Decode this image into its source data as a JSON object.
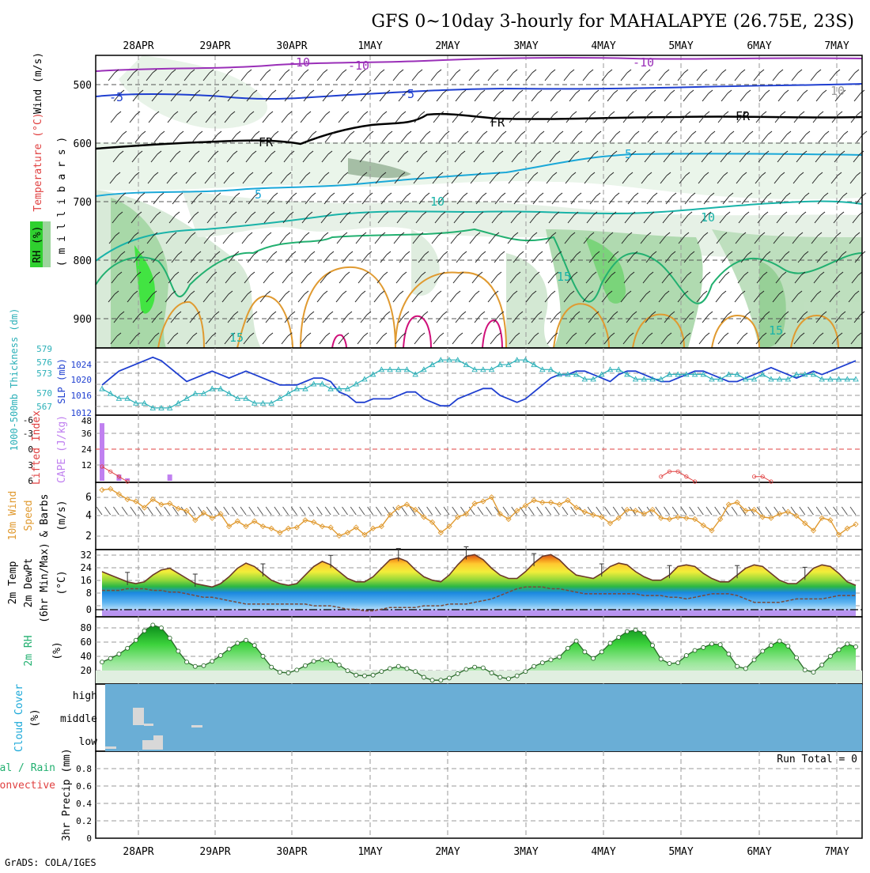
{
  "title": "GFS 0~10day 3-hourly for MAHALAPYE (26.75E, 23S)",
  "footer": "GrADS: COLA/IGES",
  "dates": [
    "28APR",
    "29APR",
    "30APR",
    "1MAY",
    "2MAY",
    "3MAY",
    "4MAY",
    "5MAY",
    "6MAY",
    "7MAY"
  ],
  "colors": {
    "grid": "#bbbbbb",
    "purple": "#9a2fb8",
    "blue": "#1f3fd0",
    "cyan": "#1aa8d8",
    "teal": "#19b3a8",
    "green": "#22b070",
    "orange": "#e09a30",
    "magenta": "#d0107a",
    "cloud": "#6aaed6"
  },
  "upper": {
    "ylabel_rh": "RH (%)",
    "ylabel_temp": "Temperature (°C)",
    "ylabel_wind": "Wind (m/s)",
    "ylabel_mb": "( m i l l i b a r s )",
    "pressure_ticks": [
      "500",
      "600",
      "700",
      "800",
      "900"
    ],
    "contour_labels": [
      "-10",
      "-10",
      "-10",
      "-5",
      "-5",
      "FR",
      "FR",
      "FR",
      "5",
      "5",
      "10",
      "10",
      "15",
      "15",
      "15",
      "10"
    ]
  },
  "thick_panel": {
    "left_label": "1000-500mb Thickness (dm)",
    "right_label": "SLP (mb)",
    "left_ticks": [
      "579",
      "576",
      "573",
      "570",
      "567"
    ],
    "right_ticks": [
      "1024",
      "1020",
      "1016",
      "1012"
    ]
  },
  "cape_panel": {
    "left_label": "Lifted Index",
    "right_label": "CAPE (J/kg)",
    "left_ticks": [
      "-6",
      "-3",
      "0",
      "3",
      "6"
    ],
    "right_ticks": [
      "48",
      "36",
      "24",
      "12"
    ]
  },
  "wind_panel": {
    "label1": "10m Wind",
    "label2": "Speed",
    "label3": "& Barbs",
    "unit": "(m/s)",
    "ticks": [
      "6",
      "4",
      "2"
    ]
  },
  "temp_panel": {
    "label1": "2m Temp",
    "label2": "2m DewPt",
    "label3": "(6hr Min/Max)",
    "unit": "(°C)",
    "ticks": [
      "32",
      "24",
      "16",
      "8",
      "0"
    ]
  },
  "rh_panel": {
    "label": "2m RH",
    "unit": "(%)",
    "ticks": [
      "80",
      "60",
      "40",
      "20"
    ]
  },
  "cloud_panel": {
    "label": "Cloud Cover",
    "unit": "(%)",
    "levels": [
      "high",
      "middle",
      "low"
    ]
  },
  "precip_panel": {
    "label1": "Total / Rain",
    "label2": "Convective",
    "label3": "3hr Precip (mm)",
    "run_total": "Run Total = 0",
    "ticks": [
      "0.8",
      "0.6",
      "0.4",
      "0.2",
      "0"
    ]
  },
  "chart_data": [
    {
      "type": "line",
      "name": "slp",
      "unit": "mb",
      "ylim": [
        1011,
        1029
      ],
      "values": [
        1019,
        1021,
        1023,
        1024,
        1025,
        1026,
        1027,
        1026,
        1024,
        1022,
        1020,
        1021,
        1022,
        1023,
        1022,
        1021,
        1022,
        1023,
        1022,
        1021,
        1020,
        1019,
        1019,
        1019,
        1020,
        1021,
        1021,
        1020,
        1017,
        1016,
        1014,
        1014,
        1015,
        1015,
        1015,
        1016,
        1017,
        1017,
        1015,
        1014,
        1013,
        1013,
        1015,
        1016,
        1017,
        1018,
        1018,
        1016,
        1015,
        1014,
        1015,
        1017,
        1019,
        1021,
        1022,
        1022,
        1023,
        1023,
        1022,
        1021,
        1020,
        1022,
        1023,
        1023,
        1022,
        1021,
        1020,
        1020,
        1021,
        1022,
        1023,
        1023,
        1022,
        1021,
        1020,
        1020,
        1021,
        1022,
        1023,
        1024,
        1023,
        1022,
        1021,
        1022,
        1023,
        1022,
        1023,
        1024,
        1025,
        1026
      ]
    },
    {
      "type": "line",
      "name": "thickness",
      "unit": "dm",
      "ylim": [
        566,
        579
      ],
      "values": [
        571,
        570,
        569,
        569,
        568,
        568,
        567,
        567,
        567,
        568,
        569,
        570,
        570,
        571,
        571,
        570,
        569,
        569,
        568,
        568,
        568,
        569,
        570,
        571,
        571,
        572,
        572,
        571,
        571,
        571,
        572,
        573,
        574,
        575,
        575,
        575,
        575,
        574,
        575,
        576,
        577,
        577,
        577,
        576,
        575,
        575,
        575,
        576,
        576,
        577,
        577,
        576,
        575,
        575,
        574,
        574,
        574,
        573,
        573,
        574,
        575,
        575,
        574,
        573,
        573,
        573,
        573,
        574,
        574,
        574,
        574,
        574,
        573,
        573,
        574,
        574,
        573,
        573,
        574,
        573,
        573,
        573,
        574,
        574,
        574,
        573,
        573,
        573,
        573,
        573
      ]
    },
    {
      "type": "line",
      "name": "lifted_index",
      "unit": "",
      "ylim": [
        6,
        -6
      ],
      "values": [
        3,
        4,
        5,
        6,
        6,
        6,
        6,
        6,
        6,
        6,
        6,
        6,
        6,
        6,
        6,
        6,
        6,
        6,
        6,
        6,
        6,
        6,
        6,
        6,
        6,
        6,
        6,
        6,
        6,
        6,
        6,
        6,
        6,
        6,
        6,
        6,
        6,
        6,
        6,
        6,
        6,
        6,
        6,
        6,
        6,
        6,
        6,
        6,
        6,
        6,
        6,
        6,
        6,
        6,
        6,
        6,
        6,
        6,
        6,
        6,
        6,
        6,
        6,
        6,
        6,
        6,
        5,
        4,
        4,
        5,
        6,
        6,
        6,
        6,
        6,
        6,
        6,
        5,
        5,
        6,
        6,
        6,
        6,
        6,
        6,
        6,
        6,
        6,
        6,
        6
      ]
    },
    {
      "type": "bar",
      "name": "cape",
      "unit": "J/kg",
      "ylim": [
        0,
        48
      ],
      "values": [
        46,
        0,
        5,
        2,
        0,
        0,
        0,
        0,
        5,
        0,
        0,
        0,
        0,
        0,
        0,
        0,
        0,
        0,
        0,
        0,
        0,
        0,
        0,
        0,
        0,
        0,
        0,
        0,
        0,
        0,
        0,
        0,
        0,
        0,
        0,
        0,
        0,
        0,
        0,
        0,
        0,
        0,
        0,
        0,
        0,
        0,
        0,
        0,
        0,
        0,
        0,
        0,
        0,
        0,
        0,
        0,
        0,
        0,
        0,
        0,
        0,
        0,
        0,
        0,
        0,
        0,
        0,
        0,
        0,
        0,
        0,
        0,
        0,
        0,
        0,
        0,
        0,
        0,
        0,
        0,
        0,
        0,
        0,
        0,
        0,
        0,
        0,
        0,
        0,
        0
      ]
    },
    {
      "type": "line",
      "name": "wind_speed_10m",
      "unit": "m/s",
      "ylim": [
        1,
        7
      ],
      "values": [
        6.5,
        6.6,
        6.1,
        5.6,
        5.4,
        4.8,
        5.6,
        5.1,
        5.2,
        4.7,
        4.5,
        3.6,
        4.3,
        3.8,
        4.2,
        3.0,
        3.5,
        3.0,
        3.5,
        3.0,
        2.8,
        2.4,
        2.8,
        2.9,
        3.6,
        3.4,
        3.0,
        2.9,
        2.1,
        2.4,
        2.9,
        2.2,
        2.8,
        3.0,
        4.1,
        4.8,
        5.1,
        4.6,
        3.9,
        3.4,
        2.4,
        3.0,
        3.9,
        4.2,
        5.2,
        5.4,
        5.8,
        4.2,
        3.7,
        4.5,
        5.0,
        5.5,
        5.3,
        5.3,
        5.1,
        5.5,
        4.8,
        4.4,
        4.1,
        3.9,
        3.3,
        3.8,
        4.6,
        4.5,
        4.2,
        4.6,
        3.8,
        3.7,
        3.9,
        3.8,
        3.7,
        3.1,
        2.6,
        3.7,
        5.1,
        5.3,
        4.5,
        4.6,
        3.9,
        3.8,
        4.2,
        4.4,
        4.0,
        3.3,
        2.6,
        3.8,
        3.6,
        2.2,
        2.8,
        3.2
      ]
    },
    {
      "type": "area",
      "name": "temp_2m",
      "unit": "°C",
      "ylim": [
        -4,
        34
      ],
      "values": [
        22,
        20,
        18,
        16,
        15,
        16,
        20,
        23,
        24,
        21,
        18,
        15,
        14,
        13,
        15,
        19,
        24,
        27,
        25,
        21,
        17,
        15,
        14,
        15,
        20,
        25,
        28,
        26,
        22,
        18,
        16,
        16,
        19,
        24,
        29,
        30,
        28,
        23,
        19,
        17,
        16,
        20,
        26,
        31,
        32,
        29,
        24,
        20,
        18,
        18,
        22,
        27,
        31,
        32,
        29,
        24,
        20,
        19,
        18,
        21,
        25,
        27,
        26,
        22,
        19,
        17,
        17,
        20,
        25,
        26,
        25,
        21,
        18,
        16,
        16,
        20,
        24,
        26,
        25,
        21,
        17,
        15,
        15,
        19,
        24,
        26,
        25,
        21,
        16,
        14
      ]
    },
    {
      "type": "line",
      "name": "dewpoint_2m",
      "unit": "°C",
      "ylim": [
        -4,
        34
      ],
      "values": [
        11,
        11,
        11,
        12,
        12,
        12,
        11,
        11,
        10,
        10,
        9,
        8,
        7,
        7,
        6,
        5,
        4,
        3,
        3,
        3,
        3,
        3,
        3,
        3,
        3,
        2,
        2,
        2,
        1,
        0,
        0,
        -1,
        -1,
        0,
        1,
        1,
        1,
        1,
        2,
        2,
        2,
        3,
        3,
        3,
        4,
        5,
        6,
        8,
        10,
        12,
        13,
        13,
        13,
        12,
        12,
        11,
        10,
        9,
        9,
        9,
        9,
        9,
        9,
        9,
        8,
        8,
        8,
        7,
        7,
        6,
        7,
        8,
        9,
        9,
        9,
        8,
        6,
        4,
        4,
        4,
        4,
        5,
        6,
        6,
        6,
        6,
        7,
        8,
        8,
        8
      ]
    },
    {
      "type": "area",
      "name": "rh_2m",
      "unit": "%",
      "ylim": [
        10,
        95
      ],
      "values": [
        37,
        42,
        48,
        56,
        67,
        80,
        88,
        84,
        70,
        52,
        37,
        31,
        32,
        38,
        46,
        55,
        63,
        67,
        60,
        45,
        30,
        23,
        22,
        26,
        32,
        38,
        40,
        39,
        33,
        25,
        19,
        18,
        19,
        24,
        28,
        31,
        28,
        24,
        16,
        12,
        12,
        15,
        21,
        27,
        30,
        29,
        22,
        16,
        14,
        18,
        24,
        31,
        36,
        40,
        44,
        56,
        66,
        51,
        42,
        51,
        63,
        71,
        79,
        81,
        77,
        60,
        41,
        35,
        36,
        46,
        53,
        57,
        62,
        61,
        48,
        31,
        28,
        40,
        52,
        60,
        66,
        59,
        43,
        26,
        23,
        33,
        45,
        54,
        62,
        58
      ]
    },
    {
      "type": "bar",
      "name": "precip_3hr",
      "unit": "mm",
      "ylim": [
        0,
        1
      ],
      "values": [
        0,
        0,
        0,
        0,
        0,
        0,
        0,
        0,
        0,
        0,
        0,
        0,
        0,
        0,
        0,
        0,
        0,
        0,
        0,
        0,
        0,
        0,
        0,
        0,
        0,
        0,
        0,
        0,
        0,
        0,
        0,
        0,
        0,
        0,
        0,
        0,
        0,
        0,
        0,
        0,
        0,
        0,
        0,
        0,
        0,
        0,
        0,
        0,
        0,
        0,
        0,
        0,
        0,
        0,
        0,
        0,
        0,
        0,
        0,
        0,
        0,
        0,
        0,
        0,
        0,
        0,
        0,
        0,
        0,
        0,
        0,
        0,
        0,
        0,
        0,
        0,
        0,
        0,
        0,
        0,
        0,
        0,
        0,
        0,
        0,
        0,
        0,
        0,
        0,
        0
      ]
    }
  ]
}
